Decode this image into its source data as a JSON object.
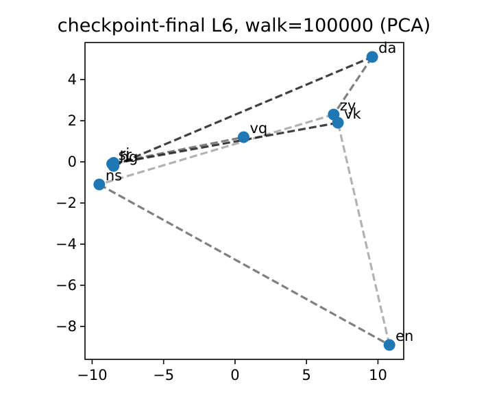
{
  "chart_data": {
    "type": "scatter",
    "title": "checkpoint-final L6, walk=100000 (PCA)",
    "xlabel": "",
    "ylabel": "",
    "xlim": [
      -10.5,
      11.8
    ],
    "ylim": [
      -9.6,
      5.8
    ],
    "x_ticks": [
      -10,
      -5,
      0,
      5,
      10
    ],
    "y_ticks": [
      4,
      2,
      0,
      -2,
      -4,
      -6,
      -8
    ],
    "x_tick_labels": [
      "−10",
      "−5",
      "0",
      "5",
      "10"
    ],
    "y_tick_labels": [
      "4",
      "2",
      "0",
      "−2",
      "−4",
      "−6",
      "−8"
    ],
    "grid": false,
    "legend": "none",
    "point_color": "#1f77b4",
    "line_color": "#000000",
    "points": [
      {
        "label": "da",
        "x": 9.6,
        "y": 5.1
      },
      {
        "label": "zy",
        "x": 6.9,
        "y": 2.3
      },
      {
        "label": "vk",
        "x": 7.2,
        "y": 1.9
      },
      {
        "label": "vq",
        "x": 0.6,
        "y": 1.2
      },
      {
        "label": "sr",
        "x": -8.6,
        "y": -0.1
      },
      {
        "label": "ri",
        "x": -8.5,
        "y": -0.05
      },
      {
        "label": "hg",
        "x": -8.5,
        "y": -0.2
      },
      {
        "label": "ns",
        "x": -9.5,
        "y": -1.1
      },
      {
        "label": "en",
        "x": 10.8,
        "y": -8.9
      }
    ],
    "path_segments": [
      {
        "from": "hg",
        "to": "da",
        "alpha": 0.75
      },
      {
        "from": "da",
        "to": "zy",
        "alpha": 0.5
      },
      {
        "from": "zy",
        "to": "ns",
        "alpha": 0.3
      },
      {
        "from": "ns",
        "to": "en",
        "alpha": 0.5
      },
      {
        "from": "en",
        "to": "vk",
        "alpha": 0.3
      },
      {
        "from": "vk",
        "to": "sr",
        "alpha": 0.75
      },
      {
        "from": "ri",
        "to": "vq",
        "alpha": 0.5
      }
    ]
  }
}
